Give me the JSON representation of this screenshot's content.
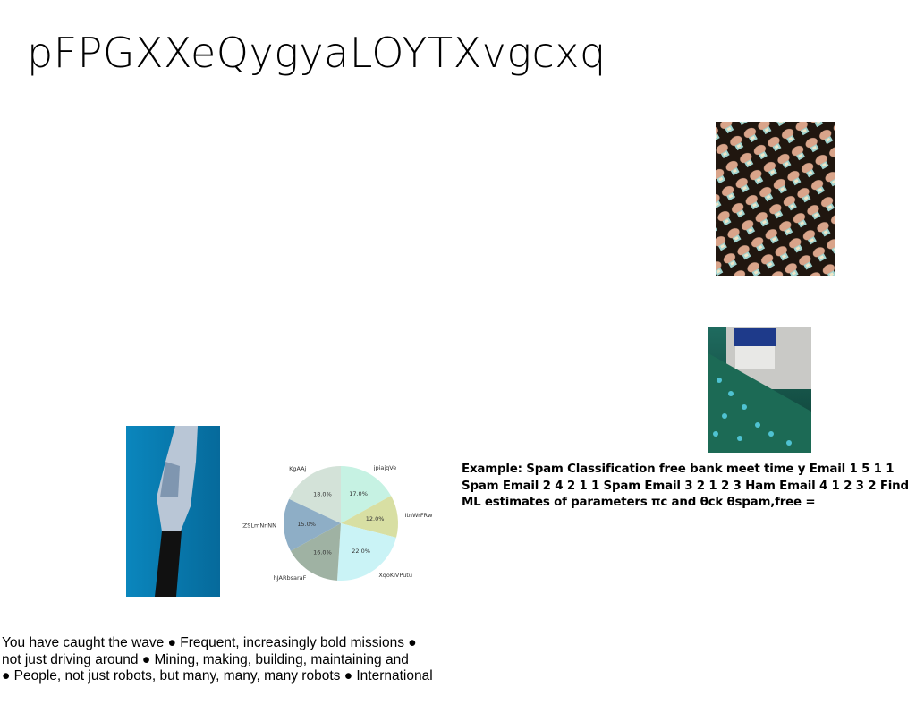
{
  "slide": {
    "title": "pFPGXXeQygyaLOYTXvgcxq",
    "example_text": "Example: Spam Classification free bank meet time y Email 1 5 1 1 Spam Email 2 4 2 1 1 Spam Email 3 2 1 2 3 Ham Email 4 1 2 3 2 Find ML estimates of parameters πc and θck θspam,free =",
    "bullet_lines": [
      "You have caught the wave ● Frequent, increasingly bold missions ●",
      "not just driving around ● Mining, making, building, maintaining and",
      "● People, not just robots, but many, many, many robots ● International"
    ]
  },
  "images": {
    "robots": "photo-robot-array",
    "field": "photo-teal-flower-field",
    "cyborg": "photo-cyborg-torso"
  },
  "chart_data": {
    "type": "pie",
    "slices": [
      {
        "label": "jpiajqVe",
        "value": 17.0,
        "pct_label": "17.0%",
        "color": "#c6f2e3"
      },
      {
        "label": "ItnWrFRw",
        "value": 12.0,
        "pct_label": "12.0%",
        "color": "#d8dfa3"
      },
      {
        "label": "XqoKiVPutu",
        "value": 22.0,
        "pct_label": "22.0%",
        "color": "#caf3f6"
      },
      {
        "label": "hJARbsaraF",
        "value": 16.0,
        "pct_label": "16.0%",
        "color": "#9fb2a3"
      },
      {
        "label": "ZZSLmNnNN",
        "value": 15.0,
        "pct_label": "15.0%",
        "color": "#8eaec6"
      },
      {
        "label": "KgAAj",
        "value": 18.0,
        "pct_label": "18.0%",
        "color": "#d3e2d8"
      }
    ],
    "start_angle": "top",
    "direction": "clockwise"
  }
}
